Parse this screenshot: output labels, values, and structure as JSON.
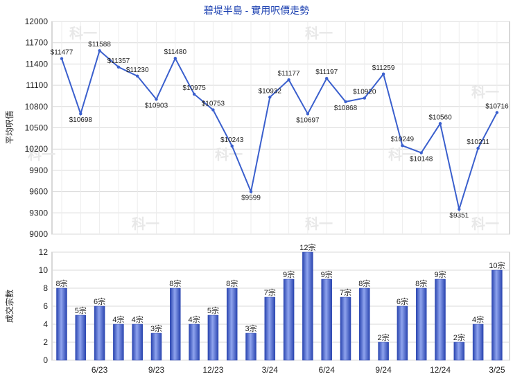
{
  "chart_data": [
    {
      "type": "line",
      "title": "碧堤半島 - 實用呎價走勢",
      "ylabel": "平均呎價",
      "ylim": [
        9000,
        12000
      ],
      "y_ticks": [
        9000,
        9300,
        9600,
        9900,
        10200,
        10500,
        10800,
        11100,
        11400,
        11700,
        12000
      ],
      "grid": true,
      "series": [
        {
          "values": [
            11477,
            10698,
            11588,
            11357,
            11230,
            10903,
            11480,
            10975,
            10753,
            10243,
            9599,
            10932,
            11177,
            10697,
            11197,
            10868,
            10920,
            11259,
            10249,
            10148,
            10560,
            9351,
            10211,
            10716
          ],
          "labels": [
            "$11477",
            "$10698",
            "$11588",
            "$11357",
            "$11230",
            "$10903",
            "$11480",
            "$10975",
            "$10753",
            "$10243",
            "$9599",
            "$10932",
            "$11177",
            "$10697",
            "$11197",
            "$10868",
            "$10920",
            "$11259",
            "$10249",
            "$10148",
            "$10560",
            "$9351",
            "$10211",
            "$10716"
          ],
          "color": "#3a5fcd"
        }
      ]
    },
    {
      "type": "bar",
      "ylabel": "成交宗數",
      "ylim": [
        0,
        12
      ],
      "y_ticks": [
        0,
        2,
        4,
        6,
        8,
        10,
        12
      ],
      "x_tick_labels": [
        "6/23",
        "9/23",
        "12/23",
        "3/24",
        "6/24",
        "9/24",
        "12/24",
        "3/25"
      ],
      "x_tick_positions": [
        2,
        5,
        8,
        11,
        14,
        17,
        20,
        23
      ],
      "grid": true,
      "series": [
        {
          "values": [
            8,
            5,
            6,
            4,
            4,
            3,
            8,
            4,
            5,
            8,
            3,
            7,
            9,
            12,
            9,
            7,
            8,
            2,
            6,
            8,
            9,
            2,
            4,
            10
          ],
          "labels": [
            "8宗",
            "5宗",
            "6宗",
            "4宗",
            "4宗",
            "3宗",
            "8宗",
            "4宗",
            "5宗",
            "8宗",
            "3宗",
            "7宗",
            "9宗",
            "12宗",
            "9宗",
            "7宗",
            "8宗",
            "2宗",
            "6宗",
            "8宗",
            "9宗",
            "2宗",
            "4宗",
            "10宗"
          ],
          "color": "#3a5fcd"
        }
      ]
    }
  ],
  "watermark": "科一"
}
